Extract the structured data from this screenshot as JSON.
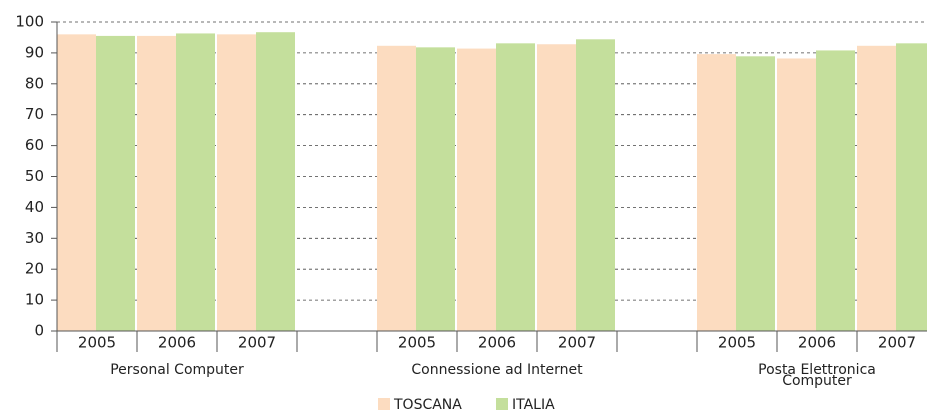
{
  "chart_data": {
    "type": "bar",
    "groups": [
      {
        "label": [
          "Personal Computer"
        ],
        "categories": [
          "2005",
          "2006",
          "2007"
        ]
      },
      {
        "label": [
          "Connessione ad Internet"
        ],
        "categories": [
          "2005",
          "2006",
          "2007"
        ]
      },
      {
        "label": [
          "Posta Elettronica",
          "Computer"
        ],
        "categories": [
          "2005",
          "2006",
          "2007"
        ]
      }
    ],
    "series": [
      {
        "name": "TOSCANA",
        "color": "#fcdcc0",
        "values": [
          96,
          95.5,
          96,
          92.3,
          91.4,
          92.8,
          89.6,
          88.2,
          92.3
        ]
      },
      {
        "name": "ITALIA",
        "color": "#c4df9c",
        "values": [
          95.5,
          96.3,
          96.7,
          91.8,
          93.1,
          94.4,
          88.9,
          90.8,
          93.1
        ]
      }
    ],
    "ylim": [
      0,
      100
    ],
    "yticks": [
      0,
      10,
      20,
      30,
      40,
      50,
      60,
      70,
      80,
      90,
      100
    ],
    "grid": true,
    "legend": "bottom"
  }
}
